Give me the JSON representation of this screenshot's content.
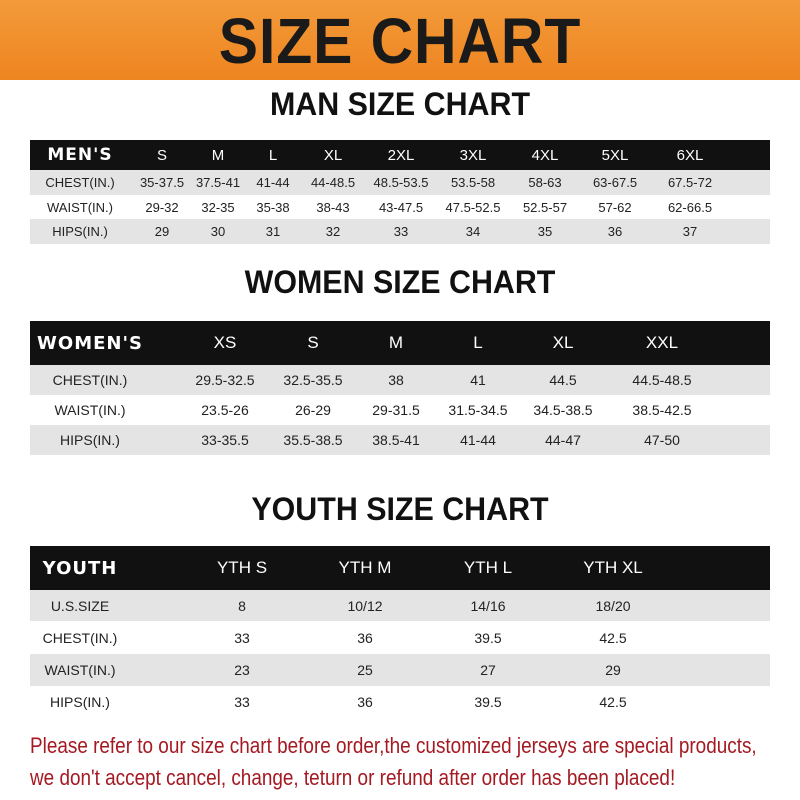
{
  "banner": {
    "title": "SIZE CHART",
    "color": "#ef8a24"
  },
  "men": {
    "title": "MAN SIZE CHART",
    "header": [
      "MEN'S",
      "S",
      "M",
      "L",
      "XL",
      "2XL",
      "3XL",
      "4XL",
      "5XL",
      "6XL"
    ],
    "rows": [
      [
        "CHEST(IN.)",
        "35-37.5",
        "37.5-41",
        "41-44",
        "44-48.5",
        "48.5-53.5",
        "53.5-58",
        "58-63",
        "63-67.5",
        "67.5-72"
      ],
      [
        "WAIST(IN.)",
        "29-32",
        "32-35",
        "35-38",
        "38-43",
        "43-47.5",
        "47.5-52.5",
        "52.5-57",
        "57-62",
        "62-66.5"
      ],
      [
        "HIPS(IN.)",
        "29",
        "30",
        "31",
        "32",
        "33",
        "34",
        "35",
        "36",
        "37"
      ]
    ]
  },
  "women": {
    "title": "WOMEN SIZE CHART",
    "header": [
      "WOMEN'S",
      "XS",
      "S",
      "M",
      "L",
      "XL",
      "XXL"
    ],
    "rows": [
      [
        "CHEST(IN.)",
        "29.5-32.5",
        "32.5-35.5",
        "38",
        "41",
        "44.5",
        "44.5-48.5"
      ],
      [
        "WAIST(IN.)",
        "23.5-26",
        "26-29",
        "29-31.5",
        "31.5-34.5",
        "34.5-38.5",
        "38.5-42.5"
      ],
      [
        "HIPS(IN.)",
        "33-35.5",
        "35.5-38.5",
        "38.5-41",
        "41-44",
        "44-47",
        "47-50"
      ]
    ]
  },
  "youth": {
    "title": "YOUTH SIZE CHART",
    "header": [
      "YOUTH",
      "YTH S",
      "YTH M",
      "YTH L",
      "YTH XL"
    ],
    "rows": [
      [
        "U.S.SIZE",
        "8",
        "10/12",
        "14/16",
        "18/20"
      ],
      [
        "CHEST(IN.)",
        "33",
        "36",
        "39.5",
        "42.5"
      ],
      [
        "WAIST(IN.)",
        "23",
        "25",
        "27",
        "29"
      ],
      [
        "HIPS(IN.)",
        "33",
        "36",
        "39.5",
        "42.5"
      ]
    ]
  },
  "note": {
    "line1": "Please refer to our size chart before order,the customized jerseys are special products,",
    "line2": "we don't accept cancel, change, teturn or refund after order has been placed!",
    "color": "#a51a22"
  }
}
